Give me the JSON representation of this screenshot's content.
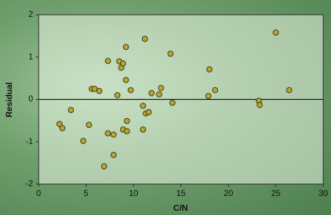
{
  "chart_data": {
    "type": "scatter",
    "x_label": "C/N",
    "y_label": "Residual",
    "x": [
      2.2,
      2.5,
      3.4,
      4.7,
      5.3,
      5.6,
      5.9,
      6.4,
      6.9,
      7.3,
      7.3,
      7.9,
      7.9,
      8.3,
      8.5,
      8.7,
      8.9,
      8.9,
      9.2,
      9.2,
      9.3,
      9.3,
      9.7,
      11.0,
      11.0,
      11.2,
      11.3,
      11.6,
      11.9,
      12.7,
      12.9,
      13.9,
      14.1,
      17.9,
      18.0,
      18.6,
      23.2,
      23.3,
      25.0,
      26.4
    ],
    "values": [
      -0.58,
      -0.68,
      -0.25,
      -0.98,
      -0.6,
      0.25,
      0.25,
      0.2,
      -1.58,
      0.91,
      -0.8,
      -0.83,
      -1.31,
      0.1,
      0.9,
      0.75,
      0.85,
      -0.71,
      1.24,
      0.46,
      -0.51,
      -0.75,
      0.22,
      -0.15,
      -0.71,
      1.43,
      -0.33,
      -0.3,
      0.15,
      0.12,
      0.27,
      1.08,
      -0.08,
      0.08,
      0.71,
      0.22,
      -0.03,
      -0.13,
      1.58,
      0.22
    ],
    "color": "#b9a532",
    "xlim": [
      0,
      30
    ],
    "ylim": [
      -2,
      2
    ],
    "xticks": [
      0,
      5,
      10,
      15,
      20,
      25,
      30
    ],
    "yticks": [
      -2,
      -1,
      0,
      1,
      2
    ],
    "hline": 0
  }
}
